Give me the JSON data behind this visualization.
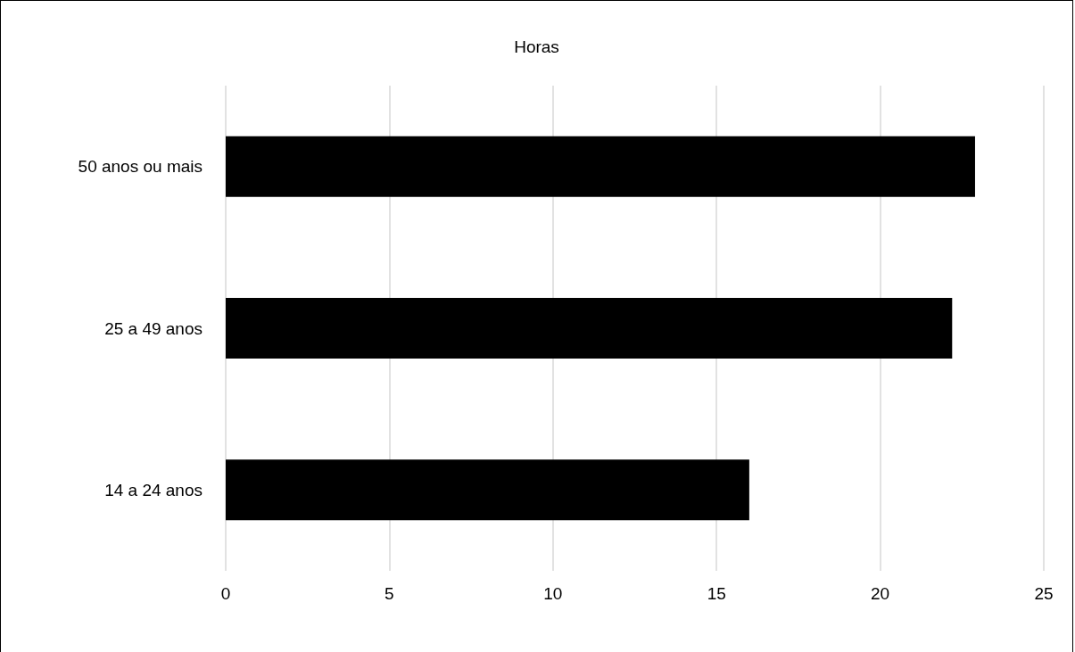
{
  "chart_data": {
    "type": "bar",
    "orientation": "horizontal",
    "title": "Horas",
    "categories": [
      "50 anos ou mais",
      "25 a 49 anos",
      "14 a 24 anos"
    ],
    "values": [
      22.9,
      22.2,
      16.0
    ],
    "color": "#000000",
    "xlim": [
      0,
      25
    ],
    "xticks": [
      0,
      5,
      10,
      15,
      20,
      25
    ],
    "grid": "x"
  }
}
